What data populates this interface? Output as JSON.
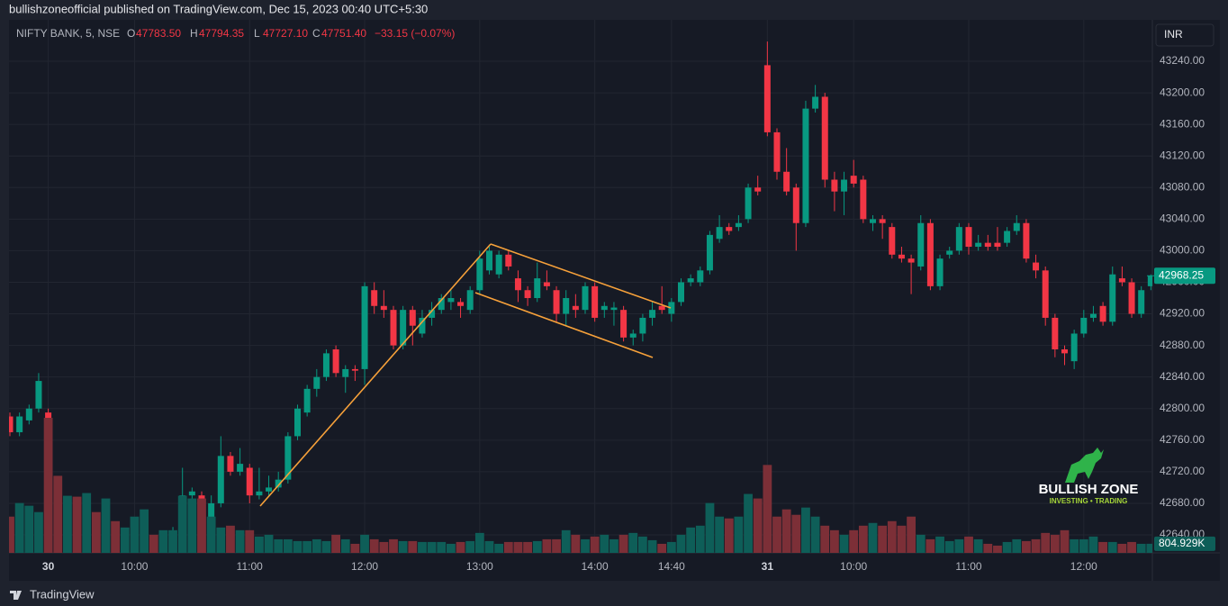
{
  "header": "bullishzoneofficial published on TradingView.com, Dec 15, 2023 00:40 UTC+5:30",
  "footer": "TradingView",
  "legend": {
    "symbol": "NIFTY BANK, 5, NSE",
    "ohlc": [
      {
        "key": "O",
        "value": "47783.50"
      },
      {
        "key": "H",
        "value": "47794.35"
      },
      {
        "key": "L",
        "value": "47727.10"
      },
      {
        "key": "C",
        "value": "47751.40"
      }
    ],
    "change": "−33.15 (−0.07%)"
  },
  "currency": "INR",
  "logo": {
    "title": "BULLISH ZONE",
    "subtitle": "INVESTING • TRADING"
  },
  "chart_data": {
    "type": "candlestick",
    "up_color": "#089981",
    "down_color": "#f23645",
    "volume_up_color": "#0e5e58",
    "volume_down_color": "#7c2f37",
    "grid": true,
    "ylim": [
      42617.2,
      43292.5
    ],
    "yticks": [
      {
        "value": 43240,
        "label": "43240.00"
      },
      {
        "value": 43200,
        "label": "43200.00"
      },
      {
        "value": 43160,
        "label": "43160.00"
      },
      {
        "value": 43120,
        "label": "43120.00"
      },
      {
        "value": 43080,
        "label": "43080.00"
      },
      {
        "value": 43040,
        "label": "43040.00"
      },
      {
        "value": 43000,
        "label": "43000.00"
      },
      {
        "value": 42960,
        "label": "42960.00"
      },
      {
        "value": 42920,
        "label": "42920.00"
      },
      {
        "value": 42880,
        "label": "42880.00"
      },
      {
        "value": 42840,
        "label": "42840.00"
      },
      {
        "value": 42800,
        "label": "42800.00"
      },
      {
        "value": 42760,
        "label": "42760.00"
      },
      {
        "value": 42720,
        "label": "42720.00"
      },
      {
        "value": 42680,
        "label": "42680.00"
      },
      {
        "value": 42640,
        "label": "42640.00"
      }
    ],
    "categories": [
      null,
      null,
      null,
      null,
      "30",
      null,
      null,
      null,
      null,
      null,
      null,
      null,
      null,
      "10:00",
      null,
      null,
      null,
      null,
      null,
      null,
      null,
      null,
      null,
      null,
      null,
      "11:00",
      null,
      null,
      null,
      null,
      null,
      null,
      null,
      null,
      null,
      null,
      null,
      "12:00",
      null,
      null,
      null,
      null,
      null,
      null,
      null,
      null,
      null,
      null,
      null,
      "13:00",
      null,
      null,
      null,
      null,
      null,
      null,
      null,
      null,
      null,
      null,
      null,
      "14:00",
      null,
      null,
      null,
      null,
      null,
      null,
      null,
      "14:40",
      null,
      null,
      null,
      null,
      null,
      null,
      null,
      null,
      null,
      "31",
      null,
      null,
      null,
      null,
      null,
      null,
      null,
      null,
      "10:00",
      null,
      null,
      null,
      null,
      null,
      null,
      null,
      null,
      null,
      null,
      null,
      "11:00",
      null,
      null,
      null,
      null,
      null,
      null,
      null,
      null,
      null,
      null,
      null,
      "12:00",
      null,
      null,
      null,
      null,
      null,
      null,
      null
    ],
    "open": [
      42790,
      42770,
      42785,
      42800,
      42795,
      42650,
      42620,
      42635,
      42610,
      42625,
      42615,
      42620,
      42610,
      42620,
      42630,
      42635,
      42625,
      42630,
      42650,
      42690,
      42690,
      42655,
      42680,
      42740,
      42720,
      42725,
      42690,
      42695,
      42700,
      42710,
      42765,
      42795,
      42825,
      42840,
      42875,
      42840,
      42850,
      42850,
      42950,
      42930,
      42925,
      42880,
      42925,
      42895,
      42915,
      42925,
      42935,
      42935,
      42925,
      42950,
      42975,
      42970,
      42995,
      42965,
      42950,
      42940,
      42960,
      42950,
      42920,
      42930,
      42925,
      42955,
      42925,
      42925,
      42925,
      42890,
      42895,
      42915,
      42930,
      42920,
      42935,
      42960,
      42960,
      42975,
      43015,
      43030,
      43030,
      43040,
      43080,
      43235,
      43150,
      43100,
      43080,
      43035,
      43180,
      43195,
      43090,
      43075,
      43095,
      43090,
      43035,
      43040,
      43030,
      42995,
      42990,
      42980,
      43035,
      42955,
      42995,
      43000,
      43030,
      43005,
      43010,
      43010,
      43010,
      43025,
      43035,
      42985,
      42975,
      42915,
      42875,
      42860,
      42895,
      42915,
      42930,
      42910,
      42965,
      42960,
      42920,
      42955
    ],
    "high": [
      42795,
      42795,
      42805,
      42845,
      42800,
      42660,
      42640,
      42640,
      42630,
      42635,
      42630,
      42630,
      42625,
      42635,
      42640,
      42640,
      42638,
      42650,
      42725,
      42700,
      42695,
      42690,
      42765,
      42745,
      42750,
      42730,
      42725,
      42715,
      42720,
      42770,
      42805,
      42830,
      42850,
      42875,
      42880,
      42855,
      42855,
      42960,
      42960,
      42950,
      42930,
      42930,
      42930,
      42925,
      42935,
      42945,
      42950,
      42940,
      42955,
      43000,
      43005,
      43000,
      43000,
      42975,
      42955,
      42985,
      42975,
      42955,
      42950,
      42945,
      42960,
      42960,
      42935,
      42935,
      42930,
      42900,
      42920,
      42935,
      42955,
      42940,
      42965,
      42970,
      42980,
      43025,
      43045,
      43035,
      43045,
      43085,
      43095,
      43265,
      43155,
      43130,
      43085,
      43190,
      43210,
      43200,
      43100,
      43100,
      43115,
      43095,
      43045,
      43045,
      43035,
      43005,
      42995,
      43045,
      43040,
      42995,
      43005,
      43035,
      43035,
      43020,
      43020,
      43030,
      43030,
      43045,
      43040,
      42995,
      42980,
      42920,
      42880,
      42900,
      42925,
      42930,
      42935,
      42980,
      42980,
      42965,
      42955,
      42970
    ],
    "low": [
      42765,
      42765,
      42780,
      42795,
      42640,
      42610,
      42605,
      42600,
      42595,
      42610,
      42600,
      42605,
      42600,
      42610,
      42615,
      42620,
      42615,
      42620,
      42640,
      42670,
      42640,
      42650,
      42675,
      42715,
      42715,
      42680,
      42685,
      42690,
      42695,
      42705,
      42760,
      42790,
      42815,
      42835,
      42840,
      42820,
      42835,
      42830,
      42920,
      42915,
      42875,
      42875,
      42880,
      42890,
      42905,
      42920,
      42925,
      42915,
      42920,
      42945,
      42970,
      42965,
      42975,
      42935,
      42930,
      42935,
      42950,
      42910,
      42905,
      42915,
      42920,
      42910,
      42915,
      42905,
      42885,
      42880,
      42885,
      42905,
      42920,
      42910,
      42930,
      42955,
      42955,
      42970,
      43010,
      43020,
      43025,
      43035,
      43070,
      43145,
      43090,
      43070,
      43000,
      43030,
      43175,
      43080,
      43050,
      43045,
      43080,
      43035,
      43025,
      43015,
      42990,
      42985,
      42945,
      42975,
      42950,
      42950,
      42990,
      42995,
      42995,
      43000,
      43000,
      43000,
      43005,
      43020,
      42985,
      42965,
      42905,
      42865,
      42855,
      42850,
      42890,
      42910,
      42905,
      42905,
      42955,
      42915,
      42915,
      42950
    ],
    "close": [
      42770,
      42790,
      42800,
      42835,
      42650,
      42620,
      42635,
      42610,
      42625,
      42615,
      42620,
      42610,
      42620,
      42630,
      42635,
      42625,
      42630,
      42645,
      42690,
      42695,
      42650,
      42680,
      42740,
      42720,
      42730,
      42690,
      42695,
      42700,
      42710,
      42765,
      42800,
      42825,
      42840,
      42870,
      42845,
      42850,
      42848,
      42955,
      42930,
      42925,
      42880,
      42925,
      42905,
      42915,
      42925,
      42940,
      42940,
      42930,
      42950,
      42990,
      43000,
      42995,
      42980,
      42950,
      42940,
      42965,
      42955,
      42920,
      42940,
      42925,
      42955,
      42915,
      42930,
      42928,
      42890,
      42895,
      42915,
      42925,
      42925,
      42935,
      42960,
      42965,
      42975,
      43020,
      43030,
      43025,
      43035,
      43080,
      43075,
      43150,
      43100,
      43075,
      43035,
      43180,
      43195,
      43090,
      43075,
      43090,
      43085,
      43040,
      43040,
      43035,
      42995,
      42990,
      42985,
      43035,
      42955,
      42990,
      43000,
      43030,
      43005,
      43010,
      43005,
      43005,
      43025,
      43035,
      42990,
      42975,
      42915,
      42875,
      42870,
      42895,
      42915,
      42920,
      42910,
      42970,
      42960,
      42920,
      42950,
      42968.25
    ],
    "volume": [
      3200000,
      4400000,
      4160000,
      3600000,
      11920000,
      6800000,
      5040000,
      4960000,
      5280000,
      3600000,
      4800000,
      2800000,
      2240000,
      3200000,
      3840000,
      1600000,
      2000000,
      2000000,
      5040000,
      4800000,
      4800000,
      3200000,
      2240000,
      2400000,
      2000000,
      2000000,
      1440000,
      1600000,
      1200000,
      1200000,
      1040000,
      1040000,
      1200000,
      1040000,
      1600000,
      1200000,
      800000,
      1600000,
      1200000,
      960000,
      1200000,
      1040000,
      1040000,
      960000,
      960000,
      960000,
      800000,
      960000,
      1040000,
      1760000,
      1040000,
      800000,
      960000,
      960000,
      960000,
      1040000,
      1200000,
      1200000,
      2000000,
      1600000,
      1200000,
      1440000,
      1600000,
      1200000,
      1600000,
      1760000,
      1440000,
      1120000,
      800000,
      960000,
      1600000,
      2240000,
      2400000,
      4400000,
      3200000,
      3040000,
      3200000,
      5200000,
      4800000,
      7760000,
      3200000,
      3840000,
      3360000,
      4000000,
      3200000,
      2400000,
      2000000,
      1600000,
      2000000,
      2400000,
      2640000,
      2400000,
      2800000,
      2400000,
      3200000,
      1600000,
      1200000,
      1440000,
      1040000,
      1200000,
      1440000,
      1200000,
      800000,
      640000,
      960000,
      1200000,
      1040000,
      1200000,
      1760000,
      1600000,
      2000000,
      1200000,
      1200000,
      1440000,
      960000,
      960000,
      800000,
      960000,
      800000,
      804929
    ],
    "volume_label": "804.929K"
  }
}
